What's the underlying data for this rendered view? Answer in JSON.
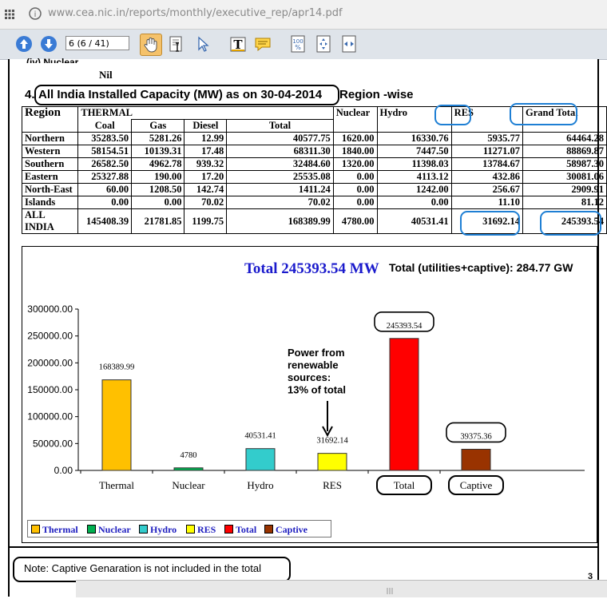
{
  "browser": {
    "url": "www.cea.nic.in/reports/monthly/executive_rep/apr14.pdf",
    "page_indicator": "6 (6 / 41)"
  },
  "doc": {
    "prev_heading": "(iv) Nuclear",
    "nil_text": "Nil",
    "section_num": "4.",
    "section_title": "All India Installed Capacity (MW) as on 30-04-2014",
    "section_suffix": "Region -wise",
    "note": "Note:  Captive Genaration is not included in the total",
    "page_num": "3"
  },
  "table": {
    "headers": {
      "region": "Region",
      "thermal": "THERMAL",
      "coal": "Coal",
      "gas": "Gas",
      "diesel": "Diesel",
      "total": "Total",
      "nuclear": "Nuclear",
      "hydro": "Hydro",
      "res": "RES",
      "grand_total": "Grand Total"
    },
    "rows": [
      {
        "region": "Northern",
        "coal": "35283.50",
        "gas": "5281.26",
        "diesel": "12.99",
        "total": "40577.75",
        "nuclear": "1620.00",
        "hydro": "16330.76",
        "res": "5935.77",
        "grand": "64464.28"
      },
      {
        "region": "Western",
        "coal": "58154.51",
        "gas": "10139.31",
        "diesel": "17.48",
        "total": "68311.30",
        "nuclear": "1840.00",
        "hydro": "7447.50",
        "res": "11271.07",
        "grand": "88869.87"
      },
      {
        "region": "Southern",
        "coal": "26582.50",
        "gas": "4962.78",
        "diesel": "939.32",
        "total": "32484.60",
        "nuclear": "1320.00",
        "hydro": "11398.03",
        "res": "13784.67",
        "grand": "58987.30"
      },
      {
        "region": "Eastern",
        "coal": "25327.88",
        "gas": "190.00",
        "diesel": "17.20",
        "total": "25535.08",
        "nuclear": "0.00",
        "hydro": "4113.12",
        "res": "432.86",
        "grand": "30081.06"
      },
      {
        "region": "North-East",
        "coal": "60.00",
        "gas": "1208.50",
        "diesel": "142.74",
        "total": "1411.24",
        "nuclear": "0.00",
        "hydro": "1242.00",
        "res": "256.67",
        "grand": "2909.91"
      },
      {
        "region": "Islands",
        "coal": "0.00",
        "gas": "0.00",
        "diesel": "70.02",
        "total": "70.02",
        "nuclear": "0.00",
        "hydro": "0.00",
        "res": "11.10",
        "grand": "81.12"
      },
      {
        "region": "ALL INDIA",
        "coal": "145408.39",
        "gas": "21781.85",
        "diesel": "1199.75",
        "total": "168389.99",
        "nuclear": "4780.00",
        "hydro": "40531.41",
        "res": "31692.14",
        "grand": "245393.54"
      }
    ]
  },
  "chart_data": {
    "type": "bar",
    "title": "Total 245393.54 MW",
    "subtitle": "Total (utilities+captive): 284.77 GW",
    "categories": [
      "Thermal",
      "Nuclear",
      "Hydro",
      "RES",
      "Total",
      "Captive"
    ],
    "values": [
      168389.99,
      4780,
      40531.41,
      31692.14,
      245393.54,
      39375.36
    ],
    "value_labels": [
      "168389.99",
      "4780",
      "40531.41",
      "31692.14",
      "245393.54",
      "39375.36"
    ],
    "colors": [
      "#ffc000",
      "#00b050",
      "#33cccc",
      "#ffff00",
      "#ff0000",
      "#993300"
    ],
    "yticks": [
      "0.00",
      "50000.00",
      "100000.00",
      "150000.00",
      "200000.00",
      "250000.00",
      "300000.00"
    ],
    "ylim": [
      0,
      300000
    ],
    "annotation_lines": [
      "Power from",
      "renewable",
      "sources:",
      "13% of total"
    ],
    "legend": [
      "Thermal",
      "Nuclear",
      "Hydro",
      "RES",
      "Total",
      "Captive"
    ],
    "legend_placement": "bottom-left"
  }
}
